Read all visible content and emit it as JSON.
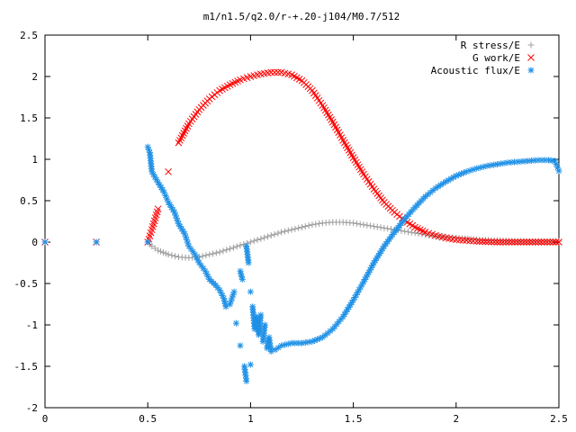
{
  "chart_data": {
    "type": "scatter",
    "title": "m1/n1.5/q2.0/r-+.20-j104/M0.7/512",
    "xlabel": "",
    "ylabel": "",
    "xlim": [
      0,
      2.5
    ],
    "ylim": [
      -2,
      2.5
    ],
    "xticks": [
      0,
      0.5,
      1,
      1.5,
      2,
      2.5
    ],
    "xtick_labels": [
      "0",
      "0.5",
      "1",
      "1.5",
      "2",
      "2.5"
    ],
    "yticks": [
      -2,
      -1.5,
      -1,
      -0.5,
      0,
      0.5,
      1,
      1.5,
      2,
      2.5
    ],
    "ytick_labels": [
      "-2",
      "-1.5",
      "-1",
      "-0.5",
      "0",
      "0.5",
      "1",
      "1.5",
      "2",
      "2.5"
    ],
    "grid": false,
    "legend_position": "top-right",
    "series": [
      {
        "name": "R stress/E",
        "marker": "+",
        "color": "#a0a0a0",
        "x": [
          0,
          0.25,
          0.5,
          0.52,
          0.55,
          0.6,
          0.65,
          0.7,
          0.75,
          0.8,
          0.85,
          0.9,
          0.95,
          1.0,
          1.05,
          1.1,
          1.15,
          1.2,
          1.25,
          1.3,
          1.35,
          1.4,
          1.45,
          1.5,
          1.55,
          1.6,
          1.65,
          1.7,
          1.75,
          1.8,
          1.85,
          1.9,
          1.95,
          2.0,
          2.1,
          2.2,
          2.3,
          2.4,
          2.5
        ],
        "y": [
          0,
          0,
          0,
          -0.05,
          -0.1,
          -0.15,
          -0.18,
          -0.19,
          -0.18,
          -0.15,
          -0.12,
          -0.08,
          -0.04,
          0.0,
          0.04,
          0.08,
          0.12,
          0.15,
          0.18,
          0.21,
          0.23,
          0.24,
          0.24,
          0.23,
          0.21,
          0.19,
          0.17,
          0.15,
          0.13,
          0.11,
          0.09,
          0.07,
          0.06,
          0.05,
          0.03,
          0.02,
          0.01,
          0.01,
          0.01
        ]
      },
      {
        "name": "G work/E",
        "marker": "x",
        "color": "#ff0000",
        "x": [
          0,
          0.25,
          0.5,
          0.52,
          0.55,
          0.6,
          0.65,
          0.7,
          0.75,
          0.8,
          0.85,
          0.9,
          0.95,
          1.0,
          1.05,
          1.1,
          1.15,
          1.2,
          1.25,
          1.3,
          1.35,
          1.4,
          1.45,
          1.5,
          1.55,
          1.6,
          1.65,
          1.7,
          1.75,
          1.8,
          1.85,
          1.9,
          1.95,
          2.0,
          2.05,
          2.1,
          2.2,
          2.3,
          2.4,
          2.5
        ],
        "y": [
          0,
          0,
          0,
          0.15,
          0.4,
          0.85,
          1.2,
          1.43,
          1.6,
          1.73,
          1.83,
          1.9,
          1.96,
          2.0,
          2.03,
          2.05,
          2.05,
          2.02,
          1.95,
          1.83,
          1.65,
          1.45,
          1.23,
          1.02,
          0.82,
          0.64,
          0.48,
          0.36,
          0.26,
          0.18,
          0.12,
          0.08,
          0.05,
          0.03,
          0.02,
          0.01,
          0.0,
          0.0,
          0.0,
          0.0
        ]
      },
      {
        "name": "Acoustic flux/E",
        "marker": "*",
        "color": "#1e90e6",
        "x": [
          0,
          0.25,
          0.5,
          0.5,
          0.51,
          0.52,
          0.55,
          0.58,
          0.6,
          0.63,
          0.65,
          0.68,
          0.7,
          0.73,
          0.75,
          0.78,
          0.8,
          0.83,
          0.85,
          0.87,
          0.88,
          0.9,
          0.92,
          0.93,
          0.95,
          0.95,
          0.96,
          0.97,
          0.98,
          0.98,
          0.99,
          1.0,
          1.0,
          1.01,
          1.02,
          1.03,
          1.04,
          1.05,
          1.06,
          1.07,
          1.08,
          1.09,
          1.1,
          1.12,
          1.15,
          1.2,
          1.25,
          1.3,
          1.35,
          1.4,
          1.45,
          1.5,
          1.55,
          1.6,
          1.65,
          1.7,
          1.75,
          1.8,
          1.85,
          1.9,
          1.95,
          2.0,
          2.05,
          2.1,
          2.15,
          2.2,
          2.25,
          2.3,
          2.35,
          2.4,
          2.45,
          2.48,
          2.5
        ],
        "y": [
          0,
          0,
          0,
          1.15,
          1.08,
          0.85,
          0.72,
          0.6,
          0.48,
          0.36,
          0.22,
          0.1,
          -0.05,
          -0.15,
          -0.25,
          -0.35,
          -0.45,
          -0.52,
          -0.58,
          -0.68,
          -0.78,
          -0.75,
          -0.6,
          -0.98,
          -1.25,
          -0.35,
          -0.45,
          -1.5,
          -1.68,
          -0.05,
          -0.25,
          -0.6,
          -1.48,
          -0.78,
          -1.05,
          -0.9,
          -1.12,
          -0.88,
          -1.2,
          -1.0,
          -1.28,
          -1.15,
          -1.32,
          -1.3,
          -1.25,
          -1.22,
          -1.22,
          -1.2,
          -1.15,
          -1.05,
          -0.9,
          -0.7,
          -0.48,
          -0.25,
          -0.05,
          0.12,
          0.28,
          0.42,
          0.55,
          0.65,
          0.73,
          0.8,
          0.85,
          0.89,
          0.92,
          0.94,
          0.96,
          0.97,
          0.98,
          0.99,
          0.99,
          0.98,
          0.86
        ]
      }
    ]
  }
}
